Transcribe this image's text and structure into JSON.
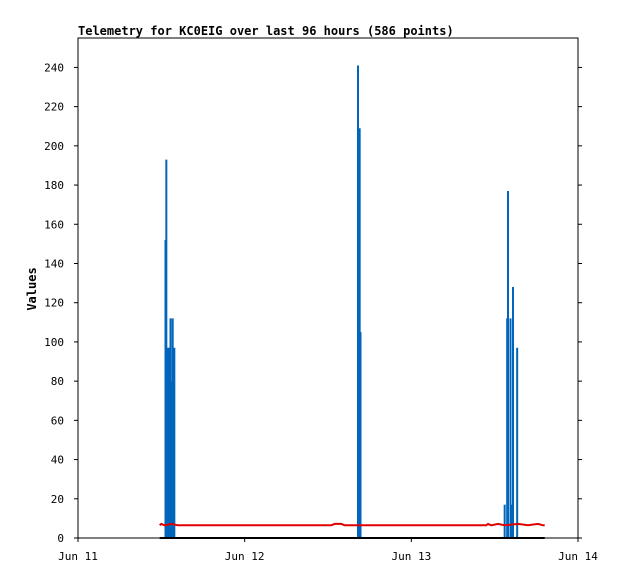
{
  "chart_data": {
    "type": "line",
    "title": "Telemetry for KC0EIG over last 96 hours (586 points)",
    "ylabel": "Values",
    "xlabel": "",
    "x_range_days": [
      11,
      14
    ],
    "ylim": [
      0,
      255
    ],
    "x_ticks": [
      {
        "label": "Jun 11",
        "day": 11
      },
      {
        "label": "Jun 12",
        "day": 12
      },
      {
        "label": "Jun 13",
        "day": 13
      },
      {
        "label": "Jun 14",
        "day": 14
      }
    ],
    "y_ticks": [
      0,
      20,
      40,
      60,
      80,
      100,
      120,
      140,
      160,
      180,
      200,
      220,
      240
    ],
    "grid": false,
    "series": [
      {
        "color": "#0066bb",
        "style": "spikes",
        "points": [
          [
            11.525,
            152
          ],
          [
            11.53,
            193
          ],
          [
            11.535,
            17
          ],
          [
            11.54,
            97
          ],
          [
            11.548,
            97
          ],
          [
            11.555,
            112
          ],
          [
            11.56,
            80
          ],
          [
            11.568,
            112
          ],
          [
            11.572,
            89
          ],
          [
            11.578,
            97
          ],
          [
            12.68,
            241
          ],
          [
            12.685,
            193
          ],
          [
            12.69,
            209
          ],
          [
            12.695,
            105
          ],
          [
            13.56,
            17
          ],
          [
            13.575,
            112
          ],
          [
            13.58,
            177
          ],
          [
            13.595,
            112
          ],
          [
            13.605,
            17
          ],
          [
            13.61,
            128
          ],
          [
            13.635,
            97
          ]
        ]
      },
      {
        "color": "#e00000",
        "style": "line",
        "points": [
          [
            11.49,
            6.5
          ],
          [
            11.5,
            7.2
          ],
          [
            11.52,
            6.5
          ],
          [
            11.56,
            7.2
          ],
          [
            11.6,
            6.5
          ],
          [
            12.52,
            6.5
          ],
          [
            12.54,
            7.2
          ],
          [
            12.58,
            7.2
          ],
          [
            12.6,
            6.5
          ],
          [
            13.45,
            6.5
          ],
          [
            13.46,
            7.2
          ],
          [
            13.48,
            6.5
          ],
          [
            13.52,
            7.2
          ],
          [
            13.56,
            6.5
          ],
          [
            13.64,
            7.2
          ],
          [
            13.7,
            6.5
          ],
          [
            13.76,
            7.2
          ],
          [
            13.79,
            6.5
          ],
          [
            13.8,
            6.5
          ]
        ]
      },
      {
        "color": "#000000",
        "style": "line",
        "points": [
          [
            11.49,
            0
          ],
          [
            13.8,
            0
          ]
        ]
      }
    ]
  }
}
